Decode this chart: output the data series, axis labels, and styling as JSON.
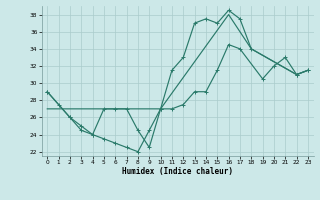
{
  "line1_x": [
    0,
    1,
    2,
    3,
    4,
    5,
    6,
    7,
    8,
    9,
    10,
    11,
    12,
    13,
    14,
    15,
    16,
    17,
    18,
    22,
    23
  ],
  "line1_y": [
    29,
    27.5,
    26,
    25,
    24,
    27,
    27,
    27,
    24.5,
    22.5,
    27,
    31.5,
    33,
    37,
    37.5,
    37,
    38.5,
    37.5,
    34,
    31,
    31.5
  ],
  "line2_x": [
    0,
    10,
    16,
    18,
    22,
    23
  ],
  "line2_y": [
    27,
    27,
    38,
    34,
    31,
    31.5
  ],
  "line3_x": [
    0,
    2,
    3,
    4,
    5,
    6,
    7,
    8,
    9,
    10,
    11,
    12,
    13,
    14,
    15,
    16,
    17,
    19,
    20,
    21,
    22,
    23
  ],
  "line3_y": [
    29,
    26,
    24.5,
    24,
    23.5,
    23,
    22.5,
    22,
    24.5,
    27,
    27,
    27.5,
    29,
    29,
    31.5,
    34.5,
    34,
    30.5,
    32,
    33,
    31,
    31.5
  ],
  "color": "#2a7a6a",
  "bg_color": "#cce8e8",
  "grid_color": "#aacccc",
  "xlabel": "Humidex (Indice chaleur)",
  "xlim": [
    -0.5,
    23.5
  ],
  "ylim": [
    21.5,
    39
  ],
  "yticks": [
    22,
    24,
    26,
    28,
    30,
    32,
    34,
    36,
    38
  ],
  "xticks": [
    0,
    1,
    2,
    3,
    4,
    5,
    6,
    7,
    8,
    9,
    10,
    11,
    12,
    13,
    14,
    15,
    16,
    17,
    18,
    19,
    20,
    21,
    22,
    23
  ]
}
